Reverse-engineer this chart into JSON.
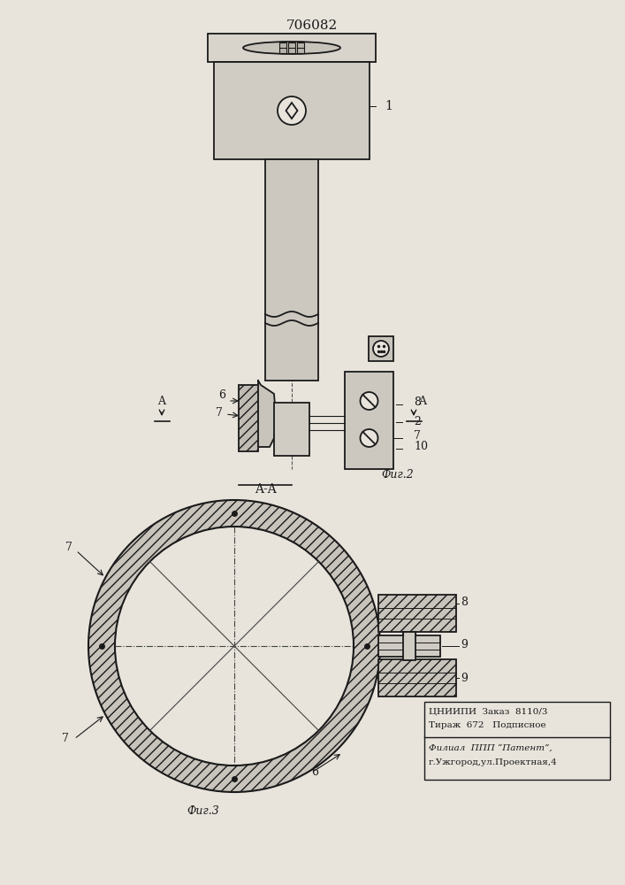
{
  "title": "706082",
  "bg_color": "#e8e4dc",
  "line_color": "#1a1a1a",
  "fig1_label": "1",
  "fig2_label": "Фиг.2",
  "fig3_label": "Фиг.3",
  "bottom_text_line1": "ЦНИИПИ  Заказ  8110/3",
  "bottom_text_line2": "Тираж  672   Подписное",
  "bottom_text_line3": "Филиал  ППП “Патент”,",
  "bottom_text_line4": "г.Ужгород,ул.Проектная,4"
}
